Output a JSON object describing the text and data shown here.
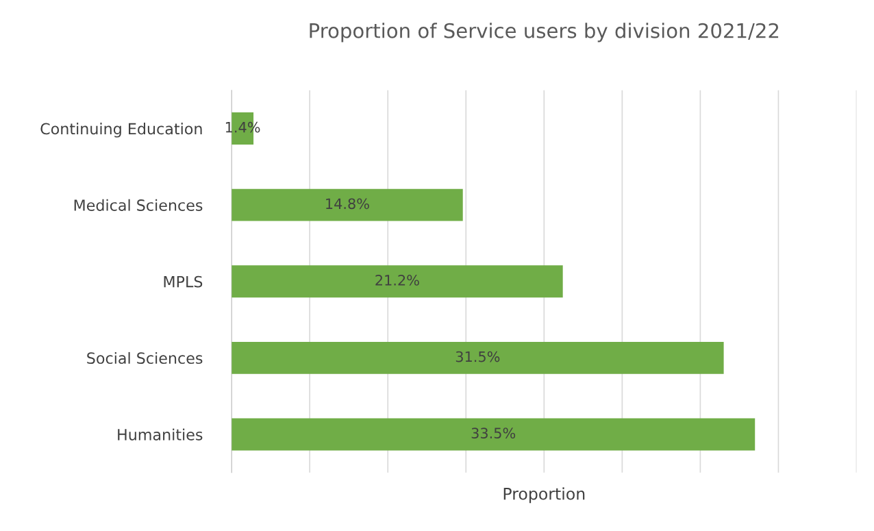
{
  "chart_data": {
    "type": "bar",
    "orientation": "horizontal",
    "title": "Proportion of Service users by division 2021/22",
    "xlabel": "Proportion",
    "categories": [
      "Continuing Education",
      "Medical Sciences",
      "MPLS",
      "Social Sciences",
      "Humanities"
    ],
    "values": [
      1.4,
      14.8,
      21.2,
      31.5,
      33.5
    ],
    "value_labels": [
      "1.4%",
      "14.8%",
      "21.2%",
      "31.5%",
      "33.5%"
    ],
    "color": "#70ad47",
    "xlim": [
      0,
      40
    ],
    "xticks": [
      {
        "value": 0,
        "label": null
      },
      {
        "value": 5,
        "label": null
      },
      {
        "value": 10,
        "label": null
      },
      {
        "value": 15,
        "label": null
      },
      {
        "value": 20,
        "label": null
      },
      {
        "value": 25,
        "label": null
      },
      {
        "value": 30,
        "label": null
      },
      {
        "value": 35,
        "label": null
      },
      {
        "value": 40,
        "label": null
      }
    ],
    "grid": "x",
    "tick_labels": "y"
  }
}
